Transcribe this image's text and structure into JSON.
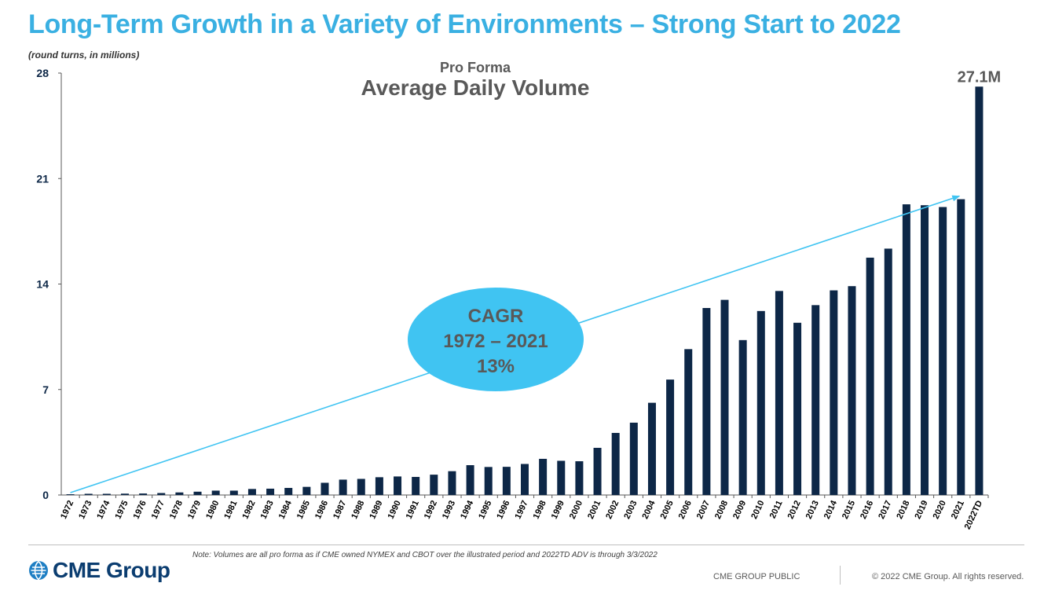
{
  "slide": {
    "title": "Long-Term Growth in a Variety of Environments – Strong Start to 2022",
    "units_note": "(round turns, in millions)",
    "footnote": "Note:  Volumes are all pro forma as if CME owned NYMEX and CBOT over the illustrated period and 2022TD ADV is through 3/3/2022",
    "logo_text": "CME Group",
    "classification": "CME GROUP  PUBLIC",
    "copyright": "© 2022 CME Group. All rights reserved."
  },
  "chart_data": {
    "type": "bar",
    "subtitle": "Pro Forma",
    "title": "Average Daily Volume",
    "xlabel": "",
    "ylabel": "",
    "ylim": [
      0,
      28
    ],
    "yticks": [
      "0",
      "7",
      "14",
      "21",
      "28"
    ],
    "grid": false,
    "categories": [
      "1972",
      "1973",
      "1974",
      "1975",
      "1976",
      "1977",
      "1978",
      "1979",
      "1980",
      "1981",
      "1982",
      "1983",
      "1984",
      "1985",
      "1986",
      "1987",
      "1988",
      "1989",
      "1990",
      "1991",
      "1992",
      "1993",
      "1994",
      "1995",
      "1996",
      "1997",
      "1998",
      "1999",
      "2000",
      "2001",
      "2002",
      "2003",
      "2004",
      "2005",
      "2006",
      "2007",
      "2008",
      "2009",
      "2010",
      "2011",
      "2012",
      "2013",
      "2014",
      "2015",
      "2016",
      "2017",
      "2018",
      "2019",
      "2020",
      "2021",
      "2022TD"
    ],
    "values": [
      0.05,
      0.08,
      0.08,
      0.09,
      0.1,
      0.13,
      0.17,
      0.22,
      0.29,
      0.29,
      0.4,
      0.42,
      0.47,
      0.54,
      0.81,
      1.02,
      1.07,
      1.18,
      1.23,
      1.2,
      1.35,
      1.58,
      1.98,
      1.86,
      1.87,
      2.06,
      2.4,
      2.27,
      2.24,
      3.13,
      4.12,
      4.8,
      6.12,
      7.66,
      9.68,
      12.41,
      12.95,
      10.28,
      12.21,
      13.54,
      11.43,
      12.6,
      13.58,
      13.86,
      15.75,
      16.35,
      19.29,
      19.23,
      19.11,
      19.63,
      27.1
    ],
    "bar_color": "#0d2747",
    "callout_label": "27.1M",
    "cagr_bubble": {
      "lines": [
        "CAGR",
        "1972 – 2021",
        "13%"
      ],
      "fill": "#40c4f2",
      "text_color": "#595959"
    },
    "trend_arrow_color": "#40c4f2"
  }
}
